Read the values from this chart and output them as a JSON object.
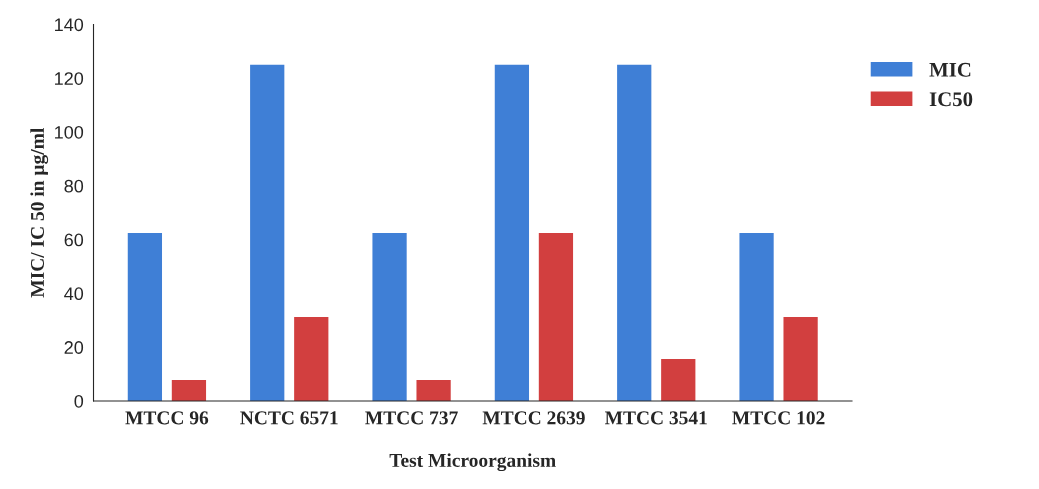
{
  "chart_data": {
    "type": "bar",
    "xlabel": "Test Microorganism",
    "ylabel": "MIC/ IC 50 in µg/ml",
    "categories": [
      "MTCC 96",
      "NCTC 6571",
      "MTCC 737",
      "MTCC 2639",
      "MTCC 3541",
      "MTCC 102"
    ],
    "series": [
      {
        "name": "MIC",
        "color": "#3f7fd6",
        "values": [
          62.5,
          125,
          62.5,
          125,
          125,
          62.5
        ]
      },
      {
        "name": "IC50",
        "color": "#d23f3f",
        "values": [
          7.8,
          31.25,
          7.8,
          62.5,
          15.6,
          31.25
        ]
      }
    ],
    "ylim": [
      0,
      140
    ],
    "yticks": [
      0,
      20,
      40,
      60,
      80,
      100,
      120,
      140
    ],
    "grid": false,
    "legend": "top right"
  }
}
